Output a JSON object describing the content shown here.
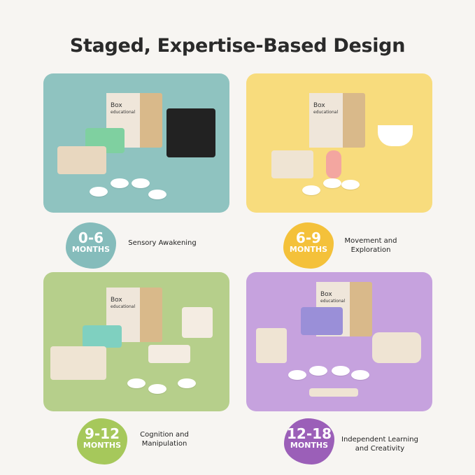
{
  "title": "Staged, Expertise-Based Design",
  "product_label": {
    "brand": "Box",
    "sub": "educational"
  },
  "stages": [
    {
      "range": "0-6",
      "unit": "MONTHS",
      "description": "Sensory Awakening",
      "panel_color": "#8fc3c0",
      "badge_color": "#85bcbb"
    },
    {
      "range": "6-9",
      "unit": "MONTHS",
      "description": "Movement and Exploration",
      "panel_color": "#f8dc7d",
      "badge_color": "#f4c13a"
    },
    {
      "range": "9-12",
      "unit": "MONTHS",
      "description": "Cognition and Manipulation",
      "panel_color": "#b6cf8b",
      "badge_color": "#a6c85b"
    },
    {
      "range": "12-18",
      "unit": "MONTHS",
      "description": "Independent Learning and Creativity",
      "panel_color": "#c6a2de",
      "badge_color": "#9b5fb8"
    }
  ]
}
